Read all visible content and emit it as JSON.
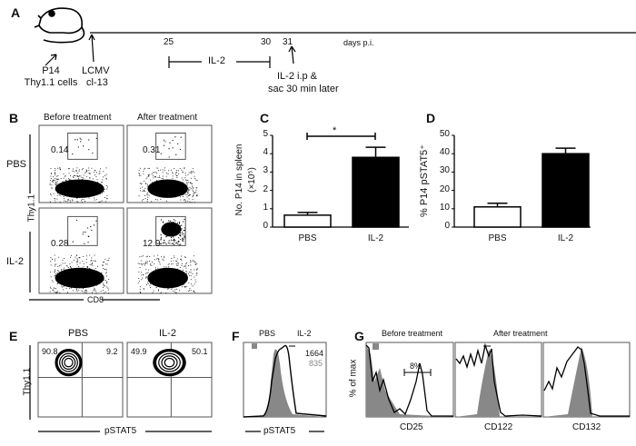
{
  "panels": {
    "a": "A",
    "b": "B",
    "c": "C",
    "d": "D",
    "e": "E",
    "f": "F",
    "g": "G"
  },
  "timeline": {
    "p14": "P14",
    "cells": "Thy1.1 cells",
    "lcmv": "LCMV",
    "cl13": "cl-13",
    "d25": "25",
    "d30": "30",
    "d31": "31",
    "days": "days p.i.",
    "il2": "IL-2",
    "ip": "IL-2 i.p  &",
    "sac": "sac 30 min later"
  },
  "flowB": {
    "before": "Before treatment",
    "after": "After treatment",
    "pbs": "PBS",
    "il2": "IL-2",
    "ylabel": "Thy1.1",
    "xlabel": "CD8",
    "gates": [
      "0.14",
      "0.31",
      "0.28",
      "12.9"
    ]
  },
  "flowE": {
    "pbs": "PBS",
    "il2": "IL-2",
    "ylabel": "Thy1.1",
    "xlabel": "pSTAT5",
    "pbs_q": [
      "90.8",
      "9.2"
    ],
    "il2_q": [
      "49.9",
      "50.1"
    ]
  },
  "histF": {
    "legend_pbs": "PBS",
    "legend_il2": "IL-2",
    "mfi_il2": "1664",
    "mfi_pbs": "835",
    "xlabel": "pSTAT5"
  },
  "histG": {
    "legend_before": "Before treatment",
    "legend_after": "After treatment",
    "ylabel": "% of max",
    "xlabels": [
      "CD25",
      "CD122",
      "CD132"
    ],
    "gate": "8%"
  },
  "chart_data": [
    {
      "type": "bar",
      "title": "",
      "categories": [
        "PBS",
        "IL-2"
      ],
      "values": [
        0.65,
        3.8
      ],
      "errors": [
        0.15,
        0.55
      ],
      "fills": [
        "#ffffff",
        "#000000"
      ],
      "ylabel": "No. P14 in spleen",
      "ylabel2": "(×10⁵)",
      "ylim": [
        0,
        5
      ],
      "yticks": [
        "0",
        "1",
        "2",
        "3",
        "4",
        "5"
      ],
      "significance": "*"
    },
    {
      "type": "bar",
      "title": "",
      "categories": [
        "PBS",
        "IL-2"
      ],
      "values": [
        11,
        40
      ],
      "errors": [
        2,
        3
      ],
      "fills": [
        "#ffffff",
        "#000000"
      ],
      "ylabel": "% P14 pSTAT5⁺",
      "ylim": [
        0,
        50
      ],
      "yticks": [
        "0",
        "10",
        "20",
        "30",
        "40",
        "50"
      ]
    }
  ]
}
